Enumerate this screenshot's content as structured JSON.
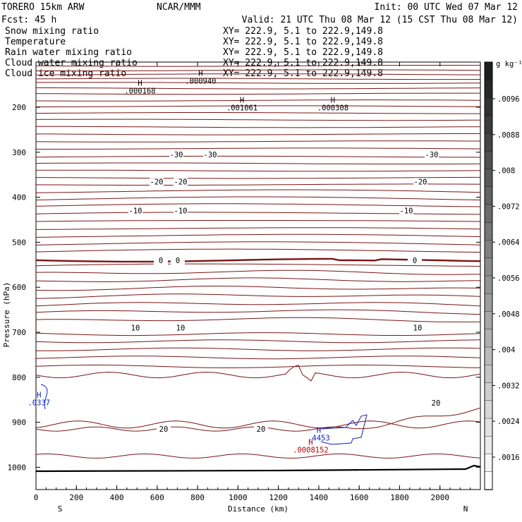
{
  "header": {
    "model": "TORERO  15km ARW",
    "center": "NCAR/MMM",
    "init": "Init: 00 UTC Wed 07 Mar 12",
    "fcst": "Fcst:   45 h",
    "valid": "Valid: 21 UTC Thu 08 Mar 12 (15 CST Thu 08 Mar 12)"
  },
  "legend": [
    {
      "name": "Snow mixing ratio",
      "xy": "XY= 222.9,  5.1 to 222.9,149.8",
      "color": "#000000"
    },
    {
      "name": "Temperature",
      "xy": "XY= 222.9,  5.1 to 222.9,149.8",
      "color": "#c00000"
    },
    {
      "name": "Rain water mixing ratio",
      "xy": "XY= 222.9,  5.1 to 222.9,149.8",
      "color": "#c00000"
    },
    {
      "name": "Cloud water mixing ratio",
      "xy": "XY= 222.9,  5.1 to 222.9,149.8",
      "color": "#0000c0"
    },
    {
      "name": "Cloud ice mixing ratio",
      "xy": "XY= 222.9,  5.1 to 222.9,149.8",
      "color": "#000000"
    }
  ],
  "chart_data": {
    "type": "cross-section",
    "xlabel": "Distance (km)",
    "ylabel": "Pressure (hPa)",
    "xlim": [
      0,
      2200
    ],
    "ylim": [
      1050,
      100
    ],
    "x_ticks": [
      0,
      200,
      400,
      600,
      800,
      1000,
      1200,
      1400,
      1600,
      1800,
      2000
    ],
    "y_ticks": [
      200,
      300,
      400,
      500,
      600,
      700,
      800,
      900,
      1000
    ],
    "endpoints": {
      "left": "S",
      "right": "N"
    },
    "temperature_contours_C": [
      {
        "label": "-30",
        "pressure": 305
      },
      {
        "label": "-20",
        "pressure": 365
      },
      {
        "label": "-10",
        "pressure": 430
      },
      {
        "label": "0",
        "pressure": 540
      },
      {
        "label": "10",
        "pressure": 690
      },
      {
        "label": "20",
        "pressure": 915
      }
    ],
    "maxima": [
      {
        "mark": "H",
        "value": ".000168",
        "distance": 515,
        "pressure": 152
      },
      {
        "mark": "H",
        "value": ".000940",
        "distance": 815,
        "pressure": 130
      },
      {
        "mark": "H",
        "value": ".001061",
        "distance": 1020,
        "pressure": 190
      },
      {
        "mark": "H",
        "value": ".000308",
        "distance": 1470,
        "pressure": 190
      },
      {
        "mark": "H",
        "value": ".0337",
        "distance": 15,
        "pressure": 845
      },
      {
        "mark": "H",
        "value": ".4453",
        "distance": 1400,
        "pressure": 923
      },
      {
        "mark": "H",
        "value": ".0008152",
        "distance": 1360,
        "pressure": 950
      }
    ],
    "colorbar": {
      "unit": "g kg⁻¹",
      "labels": [
        ".0096",
        ".0088",
        ".008",
        ".0072",
        ".0064",
        ".0056",
        ".0048",
        ".004",
        ".0032",
        ".0024",
        ".0016"
      ]
    }
  }
}
